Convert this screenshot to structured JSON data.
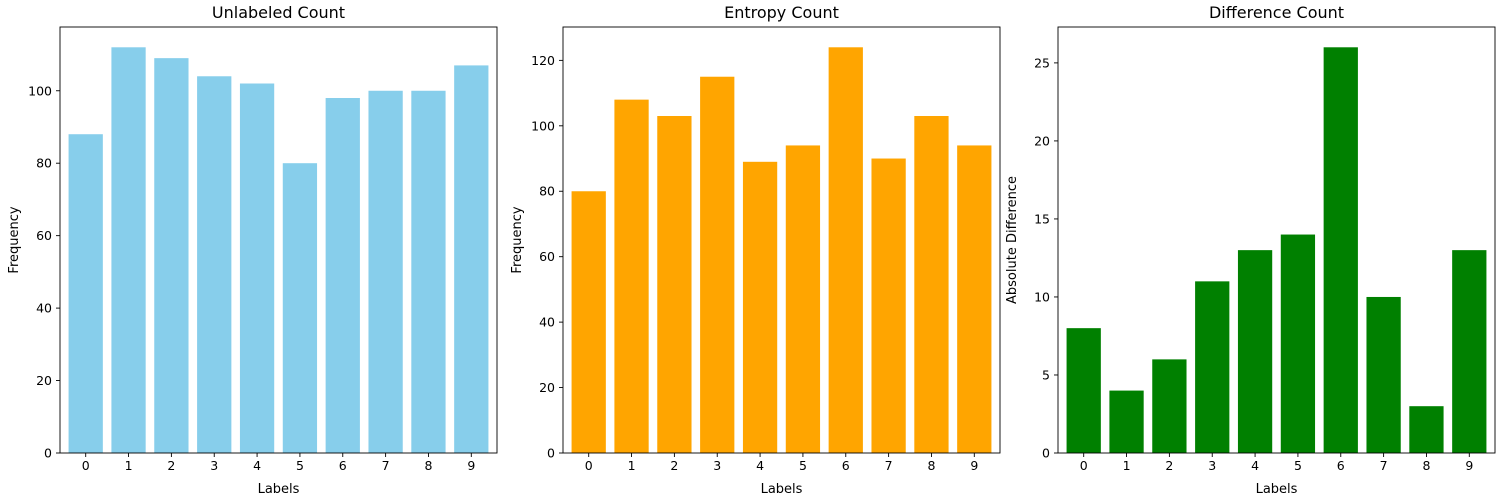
{
  "chart_data": [
    {
      "type": "bar",
      "title": "Unlabeled Count",
      "xlabel": "Labels",
      "ylabel": "Frequency",
      "categories": [
        "0",
        "1",
        "2",
        "3",
        "4",
        "5",
        "6",
        "7",
        "8",
        "9"
      ],
      "values": [
        88,
        112,
        109,
        104,
        102,
        80,
        98,
        100,
        100,
        107
      ],
      "ylim": [
        0,
        117.6
      ],
      "yticks": [
        0,
        20,
        40,
        60,
        80,
        100
      ],
      "color": "#87ceeb",
      "grid": false
    },
    {
      "type": "bar",
      "title": "Entropy Count",
      "xlabel": "Labels",
      "ylabel": "Frequency",
      "categories": [
        "0",
        "1",
        "2",
        "3",
        "4",
        "5",
        "6",
        "7",
        "8",
        "9"
      ],
      "values": [
        80,
        108,
        103,
        115,
        89,
        94,
        124,
        90,
        103,
        94
      ],
      "ylim": [
        0,
        130.2
      ],
      "yticks": [
        0,
        20,
        40,
        60,
        80,
        100,
        120
      ],
      "color": "#ffa500",
      "grid": false
    },
    {
      "type": "bar",
      "title": "Difference Count",
      "xlabel": "Labels",
      "ylabel": "Absolute Difference",
      "categories": [
        "0",
        "1",
        "2",
        "3",
        "4",
        "5",
        "6",
        "7",
        "8",
        "9"
      ],
      "values": [
        8,
        4,
        6,
        11,
        13,
        14,
        26,
        10,
        3,
        13
      ],
      "ylim": [
        0,
        27.3
      ],
      "yticks": [
        0,
        5,
        10,
        15,
        20,
        25
      ],
      "color": "#008000",
      "grid": false
    }
  ]
}
